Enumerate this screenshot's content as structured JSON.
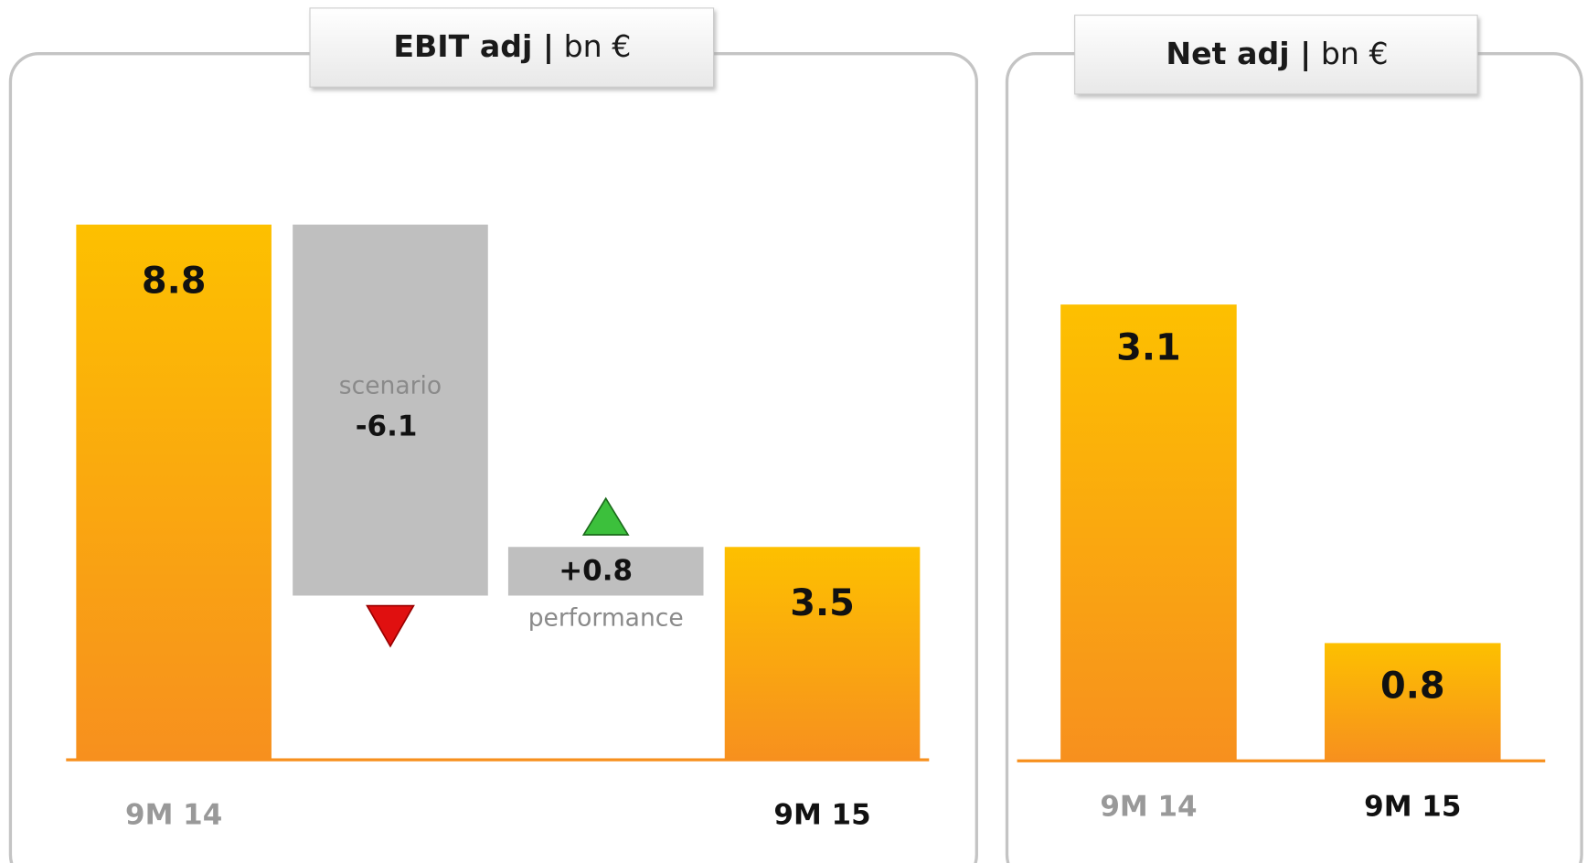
{
  "chart_data": [
    {
      "type": "waterfall",
      "title": "EBIT adj |",
      "unit": "bn €",
      "categories": [
        "9M 14",
        "scenario",
        "performance",
        "9M 15"
      ],
      "values": [
        8.8,
        -6.1,
        0.8,
        3.5
      ],
      "value_labels": [
        "8.8",
        "-6.1",
        "+0.8",
        "3.5"
      ]
    },
    {
      "type": "bar",
      "title": "Net adj |",
      "unit": "bn €",
      "categories": [
        "9M 14",
        "9M 15"
      ],
      "values": [
        3.1,
        0.8
      ]
    }
  ]
}
